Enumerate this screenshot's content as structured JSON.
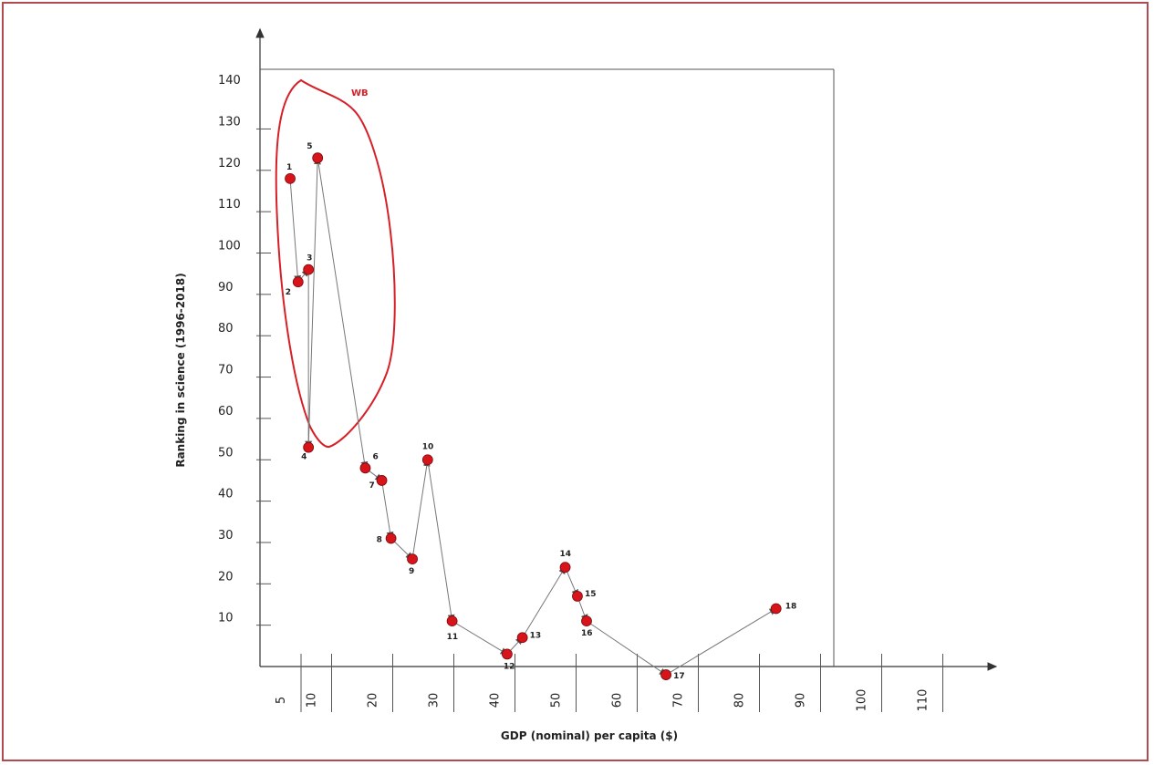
{
  "chart_data": {
    "type": "line",
    "xlabel": "GDP (nominal) per capita ($)",
    "ylabel": "Ranking in science (1996-2018)",
    "y_ticks": [
      10,
      20,
      30,
      40,
      50,
      60,
      70,
      80,
      90,
      100,
      110,
      120,
      130,
      140
    ],
    "x_ticks": [
      5,
      10,
      20,
      30,
      40,
      50,
      60,
      70,
      80,
      90,
      100,
      110
    ],
    "grid": false,
    "colors": {
      "point": "#d8141b",
      "line": "#777777",
      "annotation": "#d62028",
      "axis": "#555555"
    },
    "annotation": {
      "text": "WB"
    },
    "points": [
      {
        "label": "1",
        "x": 6.5,
        "y": 118
      },
      {
        "label": "2",
        "x": 7.8,
        "y": 93
      },
      {
        "label": "3",
        "x": 9.5,
        "y": 96
      },
      {
        "label": "4",
        "x": 9.5,
        "y": 53
      },
      {
        "label": "5",
        "x": 11,
        "y": 123
      },
      {
        "label": "6",
        "x": 18.8,
        "y": 48
      },
      {
        "label": "7",
        "x": 21.5,
        "y": 45
      },
      {
        "label": "8",
        "x": 23,
        "y": 31
      },
      {
        "label": "9",
        "x": 26.5,
        "y": 26
      },
      {
        "label": "10",
        "x": 29,
        "y": 50
      },
      {
        "label": "11",
        "x": 33,
        "y": 11
      },
      {
        "label": "12",
        "x": 42,
        "y": 3
      },
      {
        "label": "13",
        "x": 44.5,
        "y": 7
      },
      {
        "label": "14",
        "x": 51.5,
        "y": 24
      },
      {
        "label": "15",
        "x": 53.5,
        "y": 17
      },
      {
        "label": "16",
        "x": 55,
        "y": 11
      },
      {
        "label": "17",
        "x": 68,
        "y": -2
      },
      {
        "label": "18",
        "x": 86,
        "y": 14
      }
    ]
  }
}
